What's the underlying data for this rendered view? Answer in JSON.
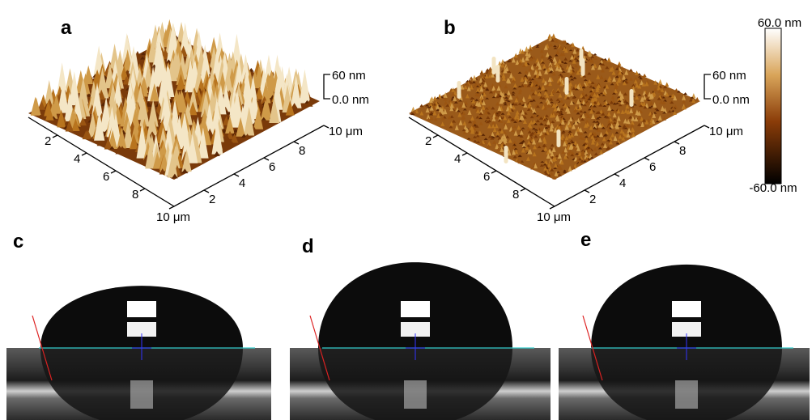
{
  "afm_panels": [
    {
      "label": "a",
      "z_labels": [
        "60 nm",
        "0.0 nm"
      ],
      "front_left_ticks": [
        "2",
        "4",
        "6",
        "8",
        "10 μm"
      ],
      "front_right_ticks": [
        "2",
        "4",
        "6",
        "8",
        "10 μm"
      ]
    },
    {
      "label": "b",
      "z_labels": [
        "60 nm",
        "0.0 nm"
      ],
      "front_left_ticks": [
        "2",
        "4",
        "6",
        "8",
        "10 μm"
      ],
      "front_right_ticks": [
        "2",
        "4",
        "6",
        "8",
        "10 μm"
      ]
    }
  ],
  "colorbar": {
    "max_label": "60.0 nm",
    "min_label": "-60.0 nm"
  },
  "droplet_panels": [
    {
      "label": "c"
    },
    {
      "label": "d"
    },
    {
      "label": "e"
    }
  ]
}
